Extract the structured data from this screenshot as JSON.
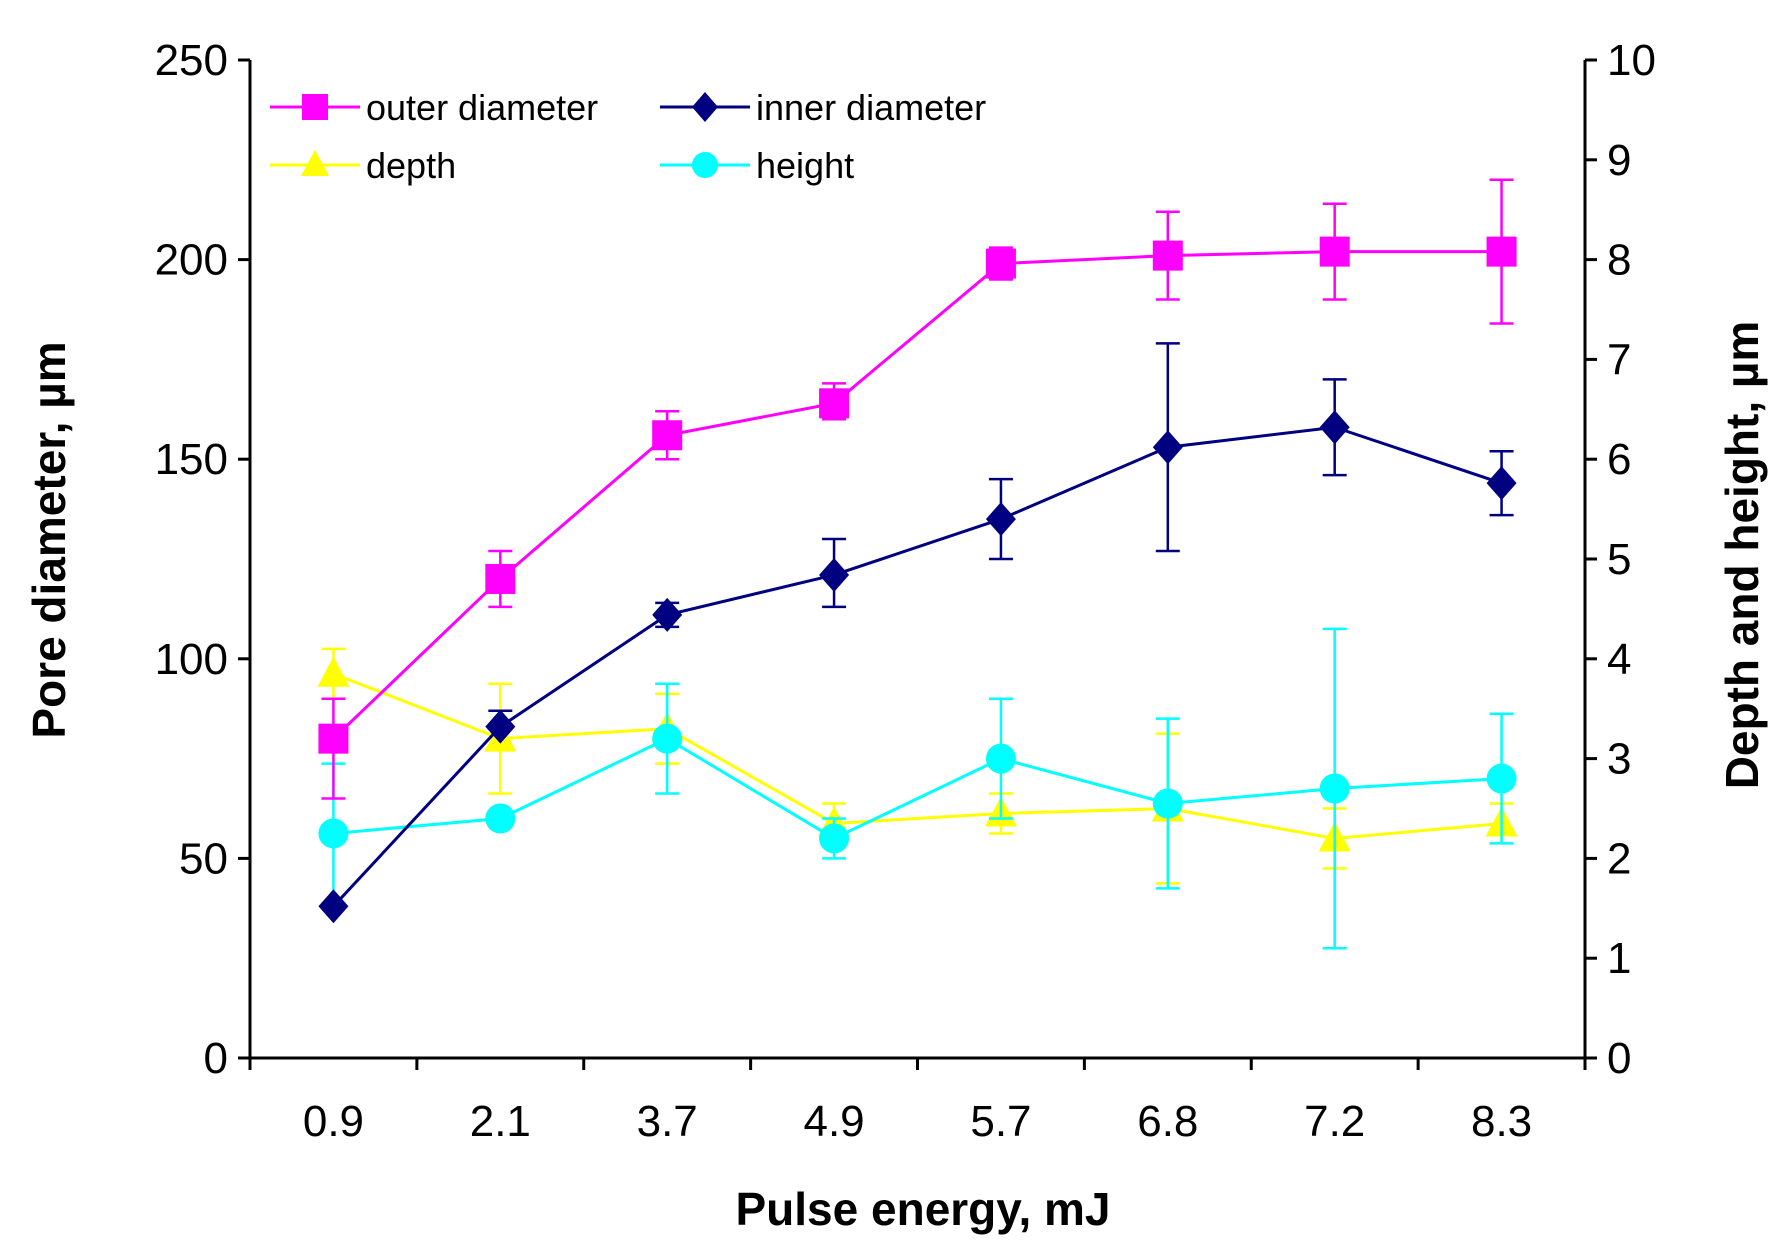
{
  "chart_data": {
    "type": "line",
    "xlabel": "Pulse energy, mJ",
    "ylabel_left": "Pore diameter, µm",
    "ylabel_right": "Depth and height, µm",
    "categories": [
      "0.9",
      "2.1",
      "3.7",
      "4.9",
      "5.7",
      "6.8",
      "7.2",
      "8.3"
    ],
    "ylim_left": [
      0,
      250
    ],
    "yticks_left": [
      "0",
      "50",
      "100",
      "150",
      "200",
      "250"
    ],
    "ylim_right": [
      0,
      10
    ],
    "yticks_right": [
      "0",
      "1",
      "2",
      "3",
      "4",
      "5",
      "6",
      "7",
      "8",
      "9",
      "10"
    ],
    "legend_position": "top-left",
    "grid": false,
    "series": [
      {
        "name": "outer diameter",
        "axis": "left",
        "color": "#ff00ff",
        "marker": "square",
        "values": [
          80,
          120,
          156,
          164,
          199,
          201,
          202,
          202
        ],
        "err_low": [
          15,
          7,
          6,
          4,
          4,
          11,
          12,
          18
        ],
        "err_high": [
          10,
          7,
          6,
          5,
          4,
          11,
          12,
          18
        ]
      },
      {
        "name": "inner diameter",
        "axis": "left",
        "color": "#000080",
        "marker": "diamond",
        "values": [
          38,
          83,
          111,
          121,
          135,
          153,
          158,
          144
        ],
        "err_low": [
          0,
          0,
          3,
          8,
          10,
          26,
          12,
          8
        ],
        "err_high": [
          0,
          4,
          3,
          9,
          10,
          26,
          12,
          8
        ]
      },
      {
        "name": "depth",
        "axis": "right",
        "color": "#ffff00",
        "marker": "triangle",
        "values": [
          3.85,
          3.2,
          3.3,
          2.35,
          2.45,
          2.5,
          2.2,
          2.35
        ],
        "err_low": [
          0.25,
          0.55,
          0.35,
          0.2,
          0.2,
          0.75,
          0.3,
          0.2
        ],
        "err_high": [
          0.25,
          0.55,
          0.35,
          0.2,
          0.2,
          0.75,
          0.3,
          0.2
        ]
      },
      {
        "name": "height",
        "axis": "right",
        "color": "#00ffff",
        "marker": "circle",
        "values": [
          2.25,
          2.4,
          3.2,
          2.2,
          3.0,
          2.55,
          2.7,
          2.8
        ],
        "err_low": [
          0.7,
          0,
          0.55,
          0.2,
          0.6,
          0.85,
          1.6,
          0.65
        ],
        "err_high": [
          0.7,
          0,
          0.55,
          0.2,
          0.6,
          0.85,
          1.6,
          0.65
        ]
      }
    ]
  }
}
